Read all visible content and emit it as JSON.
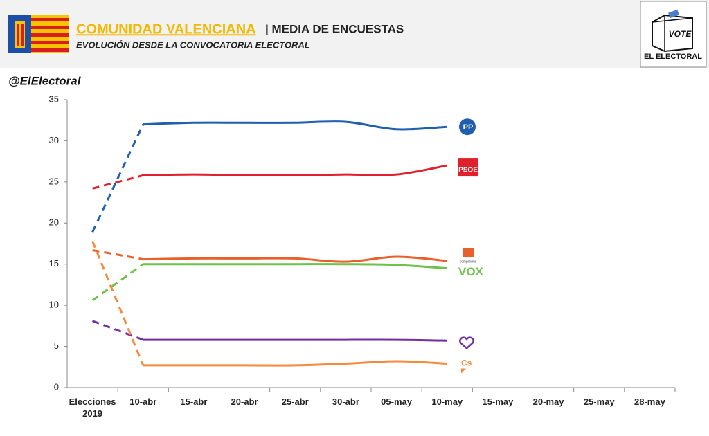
{
  "chart_data": {
    "type": "line",
    "title": "COMUNIDAD VALENCIANA",
    "title_secondary": "| MEDIA DE ENCUESTAS",
    "subtitle": "EVOLUCIÓN DESDE LA CONVOCATORIA ELECTORAL",
    "source": "@ElElectoral",
    "brand_badge": "VOTE",
    "brand": "EL ELECTORAL",
    "categories": [
      "Elecciones\n2019",
      "10-abr",
      "15-abr",
      "20-abr",
      "25-abr",
      "30-abr",
      "05-may",
      "10-may",
      "15-may",
      "20-may",
      "25-may",
      "28-may"
    ],
    "dash_first_segment": true,
    "smooth": true,
    "series": [
      {
        "name": "PP",
        "color": "#1f5fad",
        "values": [
          18.9,
          32.0,
          32.2,
          32.2,
          32.2,
          32.3,
          31.4,
          31.7,
          null,
          null,
          null,
          null
        ]
      },
      {
        "name": "PSOE",
        "color": "#e0202a",
        "values": [
          24.2,
          25.8,
          25.9,
          25.8,
          25.8,
          25.9,
          25.9,
          27.0,
          null,
          null,
          null,
          null
        ]
      },
      {
        "name": "compromís",
        "color": "#e8602c",
        "values": [
          16.7,
          15.6,
          15.7,
          15.7,
          15.7,
          15.3,
          15.9,
          15.4,
          null,
          null,
          null,
          null
        ]
      },
      {
        "name": "VOX",
        "color": "#6cc24a",
        "values": [
          10.6,
          15.0,
          15.0,
          15.0,
          15.0,
          15.0,
          14.9,
          14.5,
          null,
          null,
          null,
          null
        ]
      },
      {
        "color": "#7030a0",
        "values": [
          8.1,
          5.8,
          5.8,
          5.8,
          5.8,
          5.8,
          5.8,
          5.7,
          null,
          null,
          null,
          null
        ]
      },
      {
        "name": "Cs",
        "color": "#f58a3c",
        "values": [
          17.8,
          2.7,
          2.7,
          2.7,
          2.7,
          2.9,
          3.2,
          2.9,
          null,
          null,
          null,
          null
        ]
      }
    ],
    "ylim": [
      0,
      35
    ],
    "yticks": [
      0,
      5,
      10,
      15,
      20,
      25,
      30,
      35
    ],
    "grid": false
  }
}
